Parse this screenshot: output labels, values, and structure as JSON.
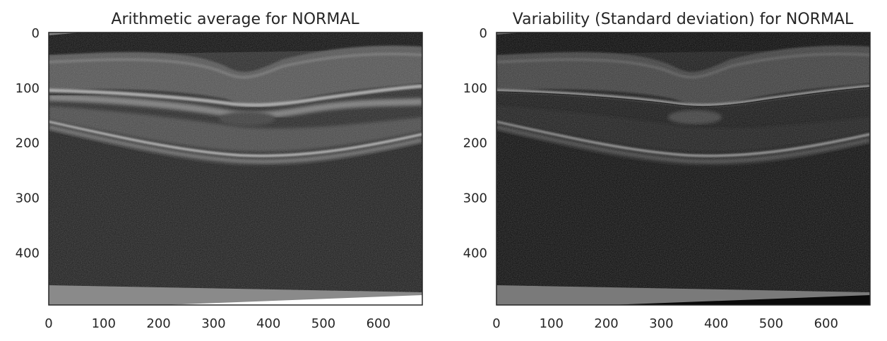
{
  "chart_data": [
    {
      "type": "image",
      "title": "Arithmetic average for NORMAL",
      "xlabel": "",
      "ylabel": "",
      "xlim": [
        0,
        680
      ],
      "ylim": [
        0,
        496
      ],
      "y_inverted": true,
      "xticks": [
        0,
        100,
        200,
        300,
        400,
        500,
        600
      ],
      "yticks": [
        0,
        100,
        200,
        300,
        400
      ],
      "colormap": "gray",
      "grid": false,
      "image_content": "oct-retina-mean-image"
    },
    {
      "type": "image",
      "title": "Variability (Standard deviation) for NORMAL",
      "xlabel": "",
      "ylabel": "",
      "xlim": [
        0,
        680
      ],
      "ylim": [
        0,
        496
      ],
      "y_inverted": true,
      "xticks": [
        0,
        100,
        200,
        300,
        400,
        500,
        600
      ],
      "yticks": [
        0,
        100,
        200,
        300,
        400
      ],
      "colormap": "gray",
      "grid": false,
      "image_content": "oct-retina-std-image"
    }
  ],
  "colors": {
    "axes_edge": "#262626",
    "text": "#262626",
    "background": "#ffffff"
  }
}
